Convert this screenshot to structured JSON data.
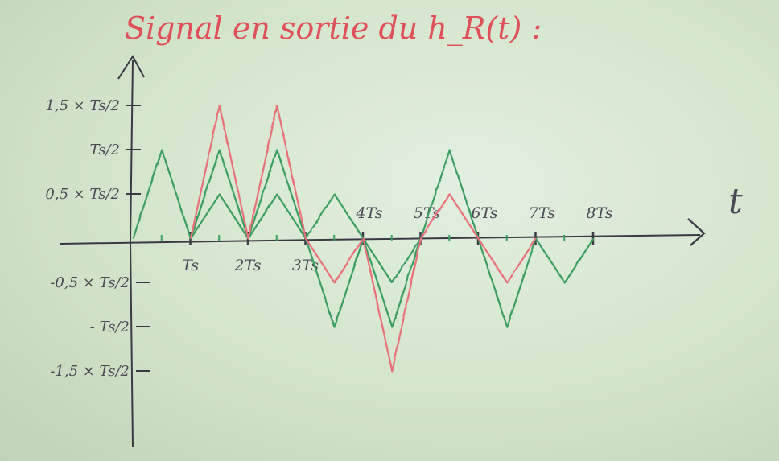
{
  "title": "Signal en sortie du h_R(t) :",
  "axis": {
    "t_label": "t"
  },
  "y_ticks": [
    {
      "label": "1,5 × Ts/2",
      "value": 1.5
    },
    {
      "label": "Ts/2",
      "value": 1.0
    },
    {
      "label": "0,5 × Ts/2",
      "value": 0.5
    },
    {
      "label": "-0,5 × Ts/2",
      "value": -0.5
    },
    {
      "label": "- Ts/2",
      "value": -1.0
    },
    {
      "label": "-1,5 × Ts/2",
      "value": -1.5
    }
  ],
  "x_ticks": [
    {
      "label": "Ts",
      "value": 1
    },
    {
      "label": "2Ts",
      "value": 2
    },
    {
      "label": "3Ts",
      "value": 3
    },
    {
      "label": "4Ts",
      "value": 4
    },
    {
      "label": "5Ts",
      "value": 5
    },
    {
      "label": "6Ts",
      "value": 6
    },
    {
      "label": "7Ts",
      "value": 7
    },
    {
      "label": "8Ts",
      "value": 8
    }
  ],
  "colors": {
    "sum": "#e8707a",
    "components": "#3a9e62",
    "axes": "#3a3a42"
  },
  "chart_data": {
    "type": "line",
    "xlim": [
      0,
      8
    ],
    "ylim": [
      -1.5,
      1.5
    ],
    "series": [
      {
        "color": "green",
        "x": [
          0,
          0.5,
          1,
          1.5,
          2,
          2.5,
          3
        ],
        "y": [
          0,
          1.0,
          0,
          1.0,
          0,
          1.0,
          0
        ]
      },
      {
        "color": "green",
        "x": [
          1,
          1.5,
          2,
          2.5,
          3
        ],
        "y": [
          0,
          0.5,
          0,
          0.5,
          0
        ]
      },
      {
        "color": "green",
        "x": [
          3,
          3.5,
          4,
          4.5,
          5,
          5.5,
          6,
          6.5,
          7,
          7.5,
          8
        ],
        "y": [
          0,
          0.5,
          0,
          -0.5,
          0,
          1.0,
          0,
          -1.0,
          0,
          -0.5,
          0
        ]
      },
      {
        "color": "green",
        "x": [
          3,
          3.5,
          4,
          4.5,
          5
        ],
        "y": [
          0,
          -1.0,
          0,
          -1.0,
          0
        ]
      },
      {
        "color": "red",
        "x": [
          1,
          1.5,
          2,
          2.5,
          3,
          3.5,
          4,
          4.5,
          5,
          5.5,
          6,
          6.5,
          7
        ],
        "y": [
          0,
          1.5,
          0,
          1.5,
          0,
          -0.5,
          0,
          -1.5,
          0,
          0.5,
          0,
          -0.5,
          0
        ]
      }
    ]
  }
}
